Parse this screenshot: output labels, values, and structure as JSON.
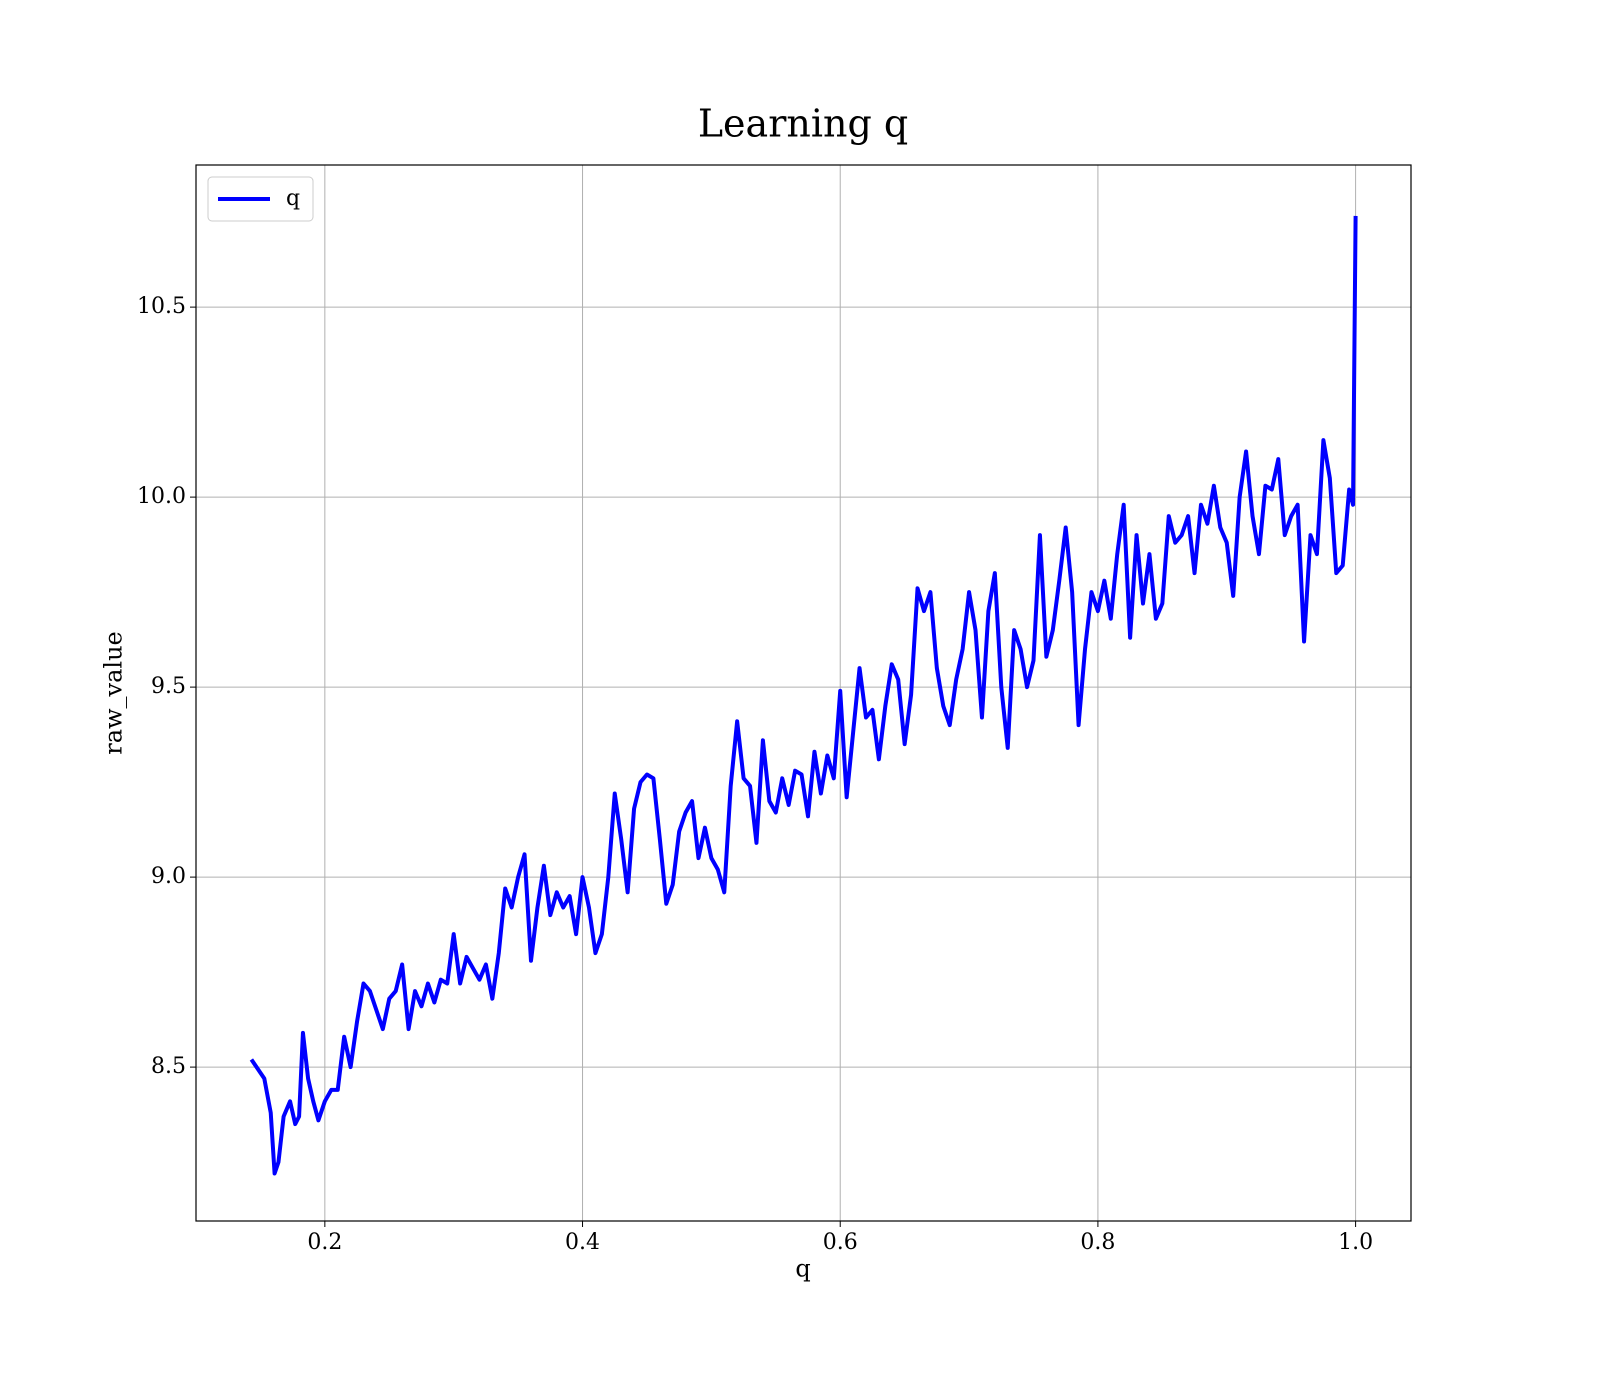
{
  "chart_data": {
    "type": "line",
    "title": "Learning q",
    "xlabel": "q",
    "ylabel": "raw_value",
    "x": [
      0.143,
      0.153,
      0.158,
      0.161,
      0.164,
      0.168,
      0.173,
      0.177,
      0.18,
      0.183,
      0.187,
      0.191,
      0.195,
      0.2,
      0.205,
      0.21,
      0.215,
      0.22,
      0.225,
      0.23,
      0.235,
      0.24,
      0.245,
      0.25,
      0.255,
      0.26,
      0.265,
      0.27,
      0.275,
      0.28,
      0.285,
      0.29,
      0.295,
      0.3,
      0.305,
      0.31,
      0.315,
      0.32,
      0.325,
      0.33,
      0.335,
      0.34,
      0.345,
      0.35,
      0.355,
      0.36,
      0.365,
      0.37,
      0.375,
      0.38,
      0.385,
      0.39,
      0.395,
      0.4,
      0.405,
      0.41,
      0.415,
      0.42,
      0.425,
      0.43,
      0.435,
      0.44,
      0.445,
      0.45,
      0.455,
      0.46,
      0.465,
      0.47,
      0.475,
      0.48,
      0.485,
      0.49,
      0.495,
      0.5,
      0.505,
      0.51,
      0.515,
      0.52,
      0.525,
      0.53,
      0.535,
      0.54,
      0.545,
      0.55,
      0.555,
      0.56,
      0.565,
      0.57,
      0.575,
      0.58,
      0.585,
      0.59,
      0.595,
      0.6,
      0.605,
      0.61,
      0.615,
      0.62,
      0.625,
      0.63,
      0.635,
      0.64,
      0.645,
      0.65,
      0.655,
      0.66,
      0.665,
      0.67,
      0.675,
      0.68,
      0.685,
      0.69,
      0.695,
      0.7,
      0.705,
      0.71,
      0.715,
      0.72,
      0.725,
      0.73,
      0.735,
      0.74,
      0.745,
      0.75,
      0.755,
      0.76,
      0.765,
      0.77,
      0.775,
      0.78,
      0.785,
      0.79,
      0.795,
      0.8,
      0.805,
      0.81,
      0.815,
      0.82,
      0.825,
      0.83,
      0.835,
      0.84,
      0.845,
      0.85,
      0.855,
      0.86,
      0.865,
      0.87,
      0.875,
      0.88,
      0.885,
      0.89,
      0.895,
      0.9,
      0.905,
      0.91,
      0.915,
      0.92,
      0.925,
      0.93,
      0.935,
      0.94,
      0.945,
      0.95,
      0.955,
      0.96,
      0.965,
      0.97,
      0.975,
      0.98,
      0.985,
      0.99,
      0.995,
      0.998,
      1.0
    ],
    "series": [
      {
        "name": "q",
        "color": "#0000ff",
        "values": [
          8.52,
          8.47,
          8.38,
          8.22,
          8.25,
          8.37,
          8.41,
          8.35,
          8.37,
          8.59,
          8.47,
          8.41,
          8.36,
          8.41,
          8.44,
          8.44,
          8.58,
          8.5,
          8.62,
          8.72,
          8.7,
          8.65,
          8.6,
          8.68,
          8.7,
          8.77,
          8.6,
          8.7,
          8.66,
          8.72,
          8.67,
          8.73,
          8.72,
          8.85,
          8.72,
          8.79,
          8.76,
          8.73,
          8.77,
          8.68,
          8.8,
          8.97,
          8.92,
          9.0,
          9.06,
          8.78,
          8.92,
          9.03,
          8.9,
          8.96,
          8.92,
          8.95,
          8.85,
          9.0,
          8.92,
          8.8,
          8.85,
          9.0,
          9.22,
          9.1,
          8.96,
          9.18,
          9.25,
          9.27,
          9.26,
          9.1,
          8.93,
          8.98,
          9.12,
          9.17,
          9.2,
          9.05,
          9.13,
          9.05,
          9.02,
          8.96,
          9.24,
          9.41,
          9.26,
          9.24,
          9.09,
          9.36,
          9.2,
          9.17,
          9.26,
          9.19,
          9.28,
          9.27,
          9.16,
          9.33,
          9.22,
          9.32,
          9.26,
          9.49,
          9.21,
          9.38,
          9.55,
          9.42,
          9.44,
          9.31,
          9.45,
          9.56,
          9.52,
          9.35,
          9.48,
          9.76,
          9.7,
          9.75,
          9.55,
          9.45,
          9.4,
          9.52,
          9.6,
          9.75,
          9.65,
          9.42,
          9.7,
          9.8,
          9.5,
          9.34,
          9.65,
          9.6,
          9.5,
          9.57,
          9.9,
          9.58,
          9.65,
          9.78,
          9.92,
          9.75,
          9.4,
          9.6,
          9.75,
          9.7,
          9.78,
          9.68,
          9.85,
          9.98,
          9.63,
          9.9,
          9.72,
          9.85,
          9.68,
          9.72,
          9.95,
          9.88,
          9.9,
          9.95,
          9.8,
          9.98,
          9.93,
          10.03,
          9.92,
          9.88,
          9.74,
          10.0,
          10.12,
          9.95,
          9.85,
          10.03,
          10.02,
          10.1,
          9.9,
          9.95,
          9.98,
          9.62,
          9.9,
          9.85,
          10.15,
          10.05,
          9.8,
          9.82,
          10.02,
          9.98,
          10.74
        ]
      }
    ],
    "xlim": [
      0.1,
      1.043
    ],
    "ylim": [
      8.095,
      10.874
    ],
    "xticks": [
      0.2,
      0.4,
      0.6,
      0.8,
      {
        "value": 1,
        "label": "1.0"
      }
    ],
    "yticks": [
      8.5,
      {
        "value": 9,
        "label": "9.0"
      },
      9.5,
      {
        "value": 10,
        "label": "10.0"
      },
      10.5
    ],
    "grid": true,
    "legend": "upper left"
  }
}
